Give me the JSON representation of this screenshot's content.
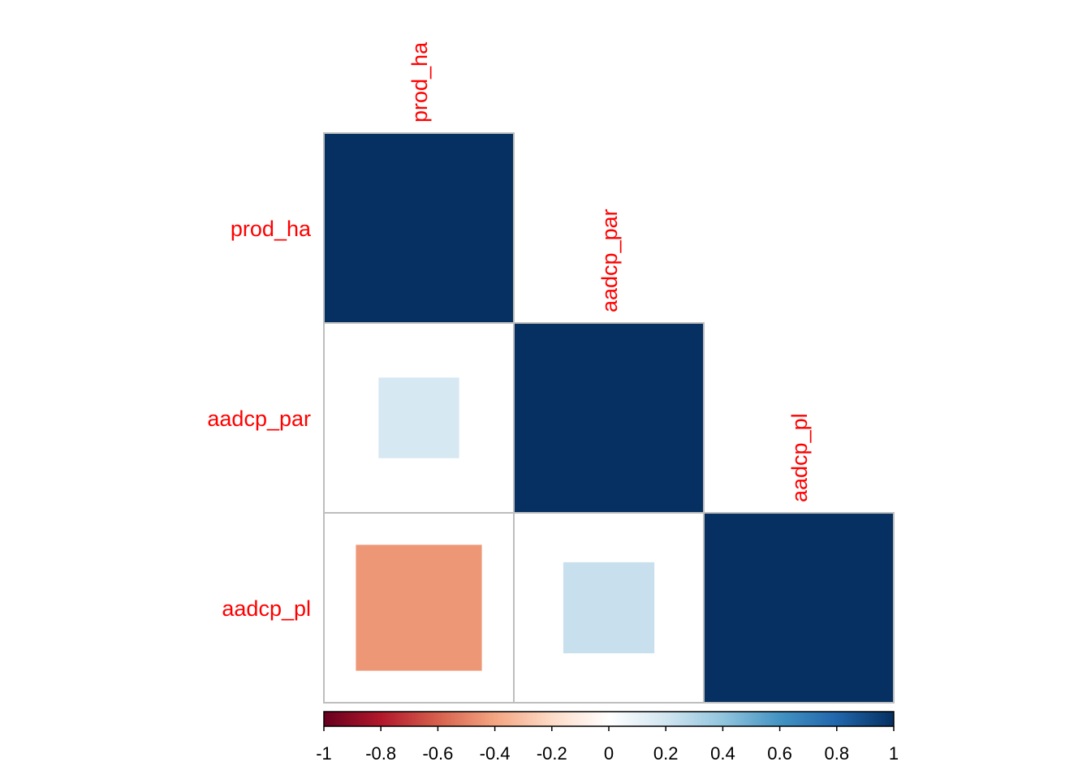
{
  "chart_data": {
    "type": "heatmap",
    "variables": [
      "prod_ha",
      "aadcp_par",
      "aadcp_pl"
    ],
    "matrix_layout": "lower triangle",
    "values": [
      [
        1,
        null,
        null
      ],
      [
        0.18,
        1,
        null
      ],
      [
        -0.44,
        0.23,
        1
      ]
    ],
    "colorbar": {
      "range": [
        -1,
        1
      ],
      "tick_labels": [
        "-1",
        "-0.8",
        "-0.6",
        "-0.4",
        "-0.2",
        "0",
        "0.2",
        "0.4",
        "0.6",
        "0.8",
        "1"
      ],
      "ticks": [
        -1,
        -0.8,
        -0.6,
        -0.4,
        -0.2,
        0,
        0.2,
        0.4,
        0.6,
        0.8,
        1
      ],
      "colors": [
        "#67001F",
        "#B2182B",
        "#D6604D",
        "#F4A582",
        "#FDDBC7",
        "#FFFFFF",
        "#D1E5F0",
        "#92C5DE",
        "#4393C3",
        "#2166AC",
        "#053061"
      ]
    },
    "label_color": "#FF0000",
    "grid_color": "#BEBEBE"
  }
}
